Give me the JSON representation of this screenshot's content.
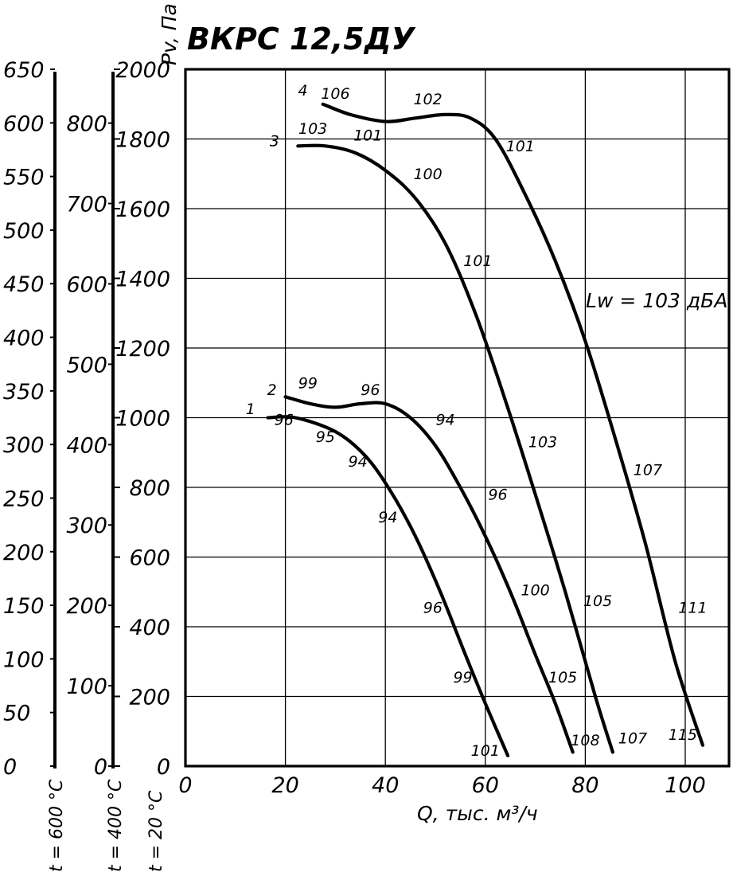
{
  "chart_data": {
    "type": "line",
    "title": "ВКРС 12,5ДУ",
    "xlabel": "Q, тыс. м³/ч",
    "ylabel": "Pv, Па",
    "xlim": [
      0,
      108
    ],
    "ylim": [
      0,
      2000
    ],
    "x_ticks": [
      0,
      20,
      40,
      60,
      80,
      100
    ],
    "y_ticks": [
      0,
      200,
      400,
      600,
      800,
      1000,
      1200,
      1400,
      1600,
      1800,
      2000
    ],
    "grid": true,
    "annotation": "Lw = 103 дБА",
    "side_scales": [
      {
        "label": "t = 600 °C",
        "max": 650,
        "labels": [
          "0",
          "50",
          "100",
          "150",
          "200",
          "250",
          "300",
          "350",
          "400",
          "450",
          "500",
          "550",
          "600",
          "650"
        ]
      },
      {
        "label": "t = 400 °C",
        "max": 867,
        "labels": [
          "0",
          "100",
          "200",
          "300",
          "400",
          "500",
          "600",
          "700",
          "800"
        ]
      },
      {
        "label": "t = 20 °C"
      }
    ],
    "series": [
      {
        "name": "1",
        "x": [
          16.5,
          22,
          30,
          36,
          41,
          46,
          51,
          56,
          60,
          64.5
        ],
        "y": [
          1000,
          1000,
          960,
          890,
          790,
          660,
          500,
          320,
          180,
          30
        ],
        "labels": [
          {
            "x": 19.7,
            "y": 980,
            "t": "96"
          },
          {
            "x": 28,
            "y": 930,
            "t": "95"
          },
          {
            "x": 34.5,
            "y": 860,
            "t": "94"
          },
          {
            "x": 40.5,
            "y": 700,
            "t": "94"
          },
          {
            "x": 49.5,
            "y": 440,
            "t": "96"
          },
          {
            "x": 55.5,
            "y": 240,
            "t": "99"
          },
          {
            "x": 60,
            "y": 30,
            "t": "101"
          }
        ]
      },
      {
        "name": "2",
        "x": [
          20,
          25,
          30,
          35,
          40,
          45,
          50,
          55,
          60,
          65,
          70,
          74,
          77.5
        ],
        "y": [
          1060,
          1040,
          1030,
          1040,
          1040,
          1000,
          920,
          800,
          660,
          500,
          320,
          180,
          40
        ],
        "labels": [
          {
            "x": 24.5,
            "y": 1085,
            "t": "99"
          },
          {
            "x": 37,
            "y": 1065,
            "t": "96"
          },
          {
            "x": 52,
            "y": 980,
            "t": "94"
          },
          {
            "x": 62.5,
            "y": 765,
            "t": "96"
          },
          {
            "x": 70,
            "y": 490,
            "t": "100"
          },
          {
            "x": 75.5,
            "y": 240,
            "t": "105"
          },
          {
            "x": 80,
            "y": 60,
            "t": "108"
          }
        ]
      },
      {
        "name": "3",
        "x": [
          22.5,
          28,
          34,
          40,
          46,
          52,
          58,
          64,
          70,
          76,
          82,
          85.5
        ],
        "y": [
          1780,
          1780,
          1760,
          1710,
          1630,
          1500,
          1300,
          1050,
          780,
          500,
          200,
          40
        ],
        "labels": [
          {
            "x": 25.5,
            "y": 1815,
            "t": "103"
          },
          {
            "x": 36.5,
            "y": 1795,
            "t": "101"
          },
          {
            "x": 48.5,
            "y": 1685,
            "t": "100"
          },
          {
            "x": 58.5,
            "y": 1435,
            "t": "101"
          },
          {
            "x": 71.5,
            "y": 915,
            "t": "103"
          },
          {
            "x": 82.5,
            "y": 460,
            "t": "105"
          },
          {
            "x": 89.5,
            "y": 65,
            "t": "107"
          }
        ]
      },
      {
        "name": "4",
        "x": [
          27.5,
          33,
          40,
          46,
          52,
          57,
          62,
          68,
          74,
          80,
          86,
          92,
          98,
          103.5
        ],
        "y": [
          1900,
          1870,
          1850,
          1860,
          1870,
          1860,
          1800,
          1640,
          1450,
          1220,
          940,
          640,
          300,
          60
        ],
        "labels": [
          {
            "x": 30,
            "y": 1915,
            "t": "106"
          },
          {
            "x": 48.5,
            "y": 1900,
            "t": "102"
          },
          {
            "x": 67,
            "y": 1765,
            "t": "101"
          },
          {
            "x": 92.5,
            "y": 835,
            "t": "107"
          },
          {
            "x": 101.5,
            "y": 440,
            "t": "111"
          },
          {
            "x": 99.5,
            "y": 75,
            "t": "115"
          }
        ]
      }
    ],
    "curve_ids": [
      {
        "t": "1",
        "x": 13,
        "y": 1010
      },
      {
        "t": "2",
        "x": 17.3,
        "y": 1065
      },
      {
        "t": "3",
        "x": 17.8,
        "y": 1780
      },
      {
        "t": "4",
        "x": 23.5,
        "y": 1925
      }
    ]
  }
}
